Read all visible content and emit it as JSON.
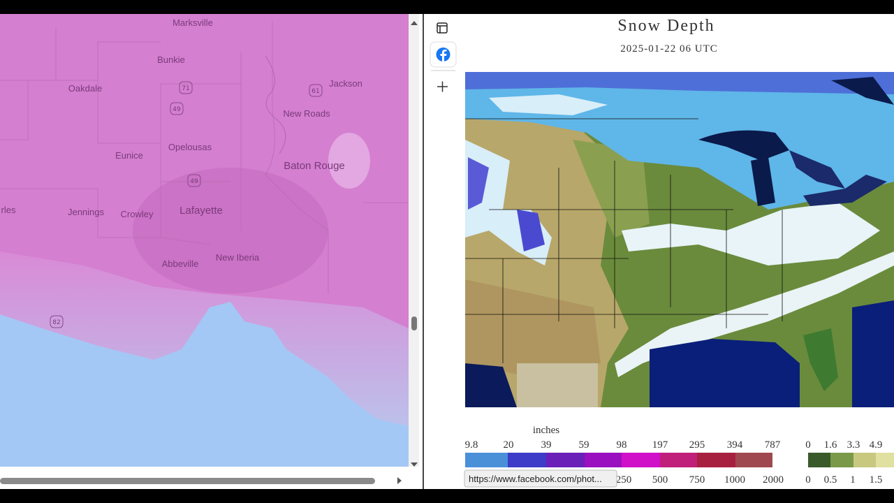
{
  "map": {
    "places": [
      "Marksville",
      "Bunkie",
      "Oakdale",
      "Jackson",
      "New Roads",
      "Eunice",
      "Opelousas",
      "Baton Rouge",
      "rles",
      "Jennings",
      "Crowley",
      "Lafayette",
      "Abbeville",
      "New Iberia"
    ],
    "shields": [
      "71",
      "61",
      "49",
      "49",
      "82"
    ]
  },
  "snow_panel": {
    "title": "Snow Depth",
    "timestamp": "2025-01-22 06 UTC",
    "units_label": "inches",
    "scale_top": [
      "9.8",
      "20",
      "39",
      "59",
      "98",
      "197",
      "295",
      "394",
      "787"
    ],
    "scale_bottom": [
      "250",
      "500",
      "750",
      "1000",
      "2000"
    ],
    "scale_right_top": [
      "0",
      "1.6",
      "3.3",
      "4.9"
    ],
    "scale_right_bottom": [
      "0",
      "0.5",
      "1",
      "1.5"
    ]
  },
  "tooltip": "https://www.facebook.com/phot..."
}
